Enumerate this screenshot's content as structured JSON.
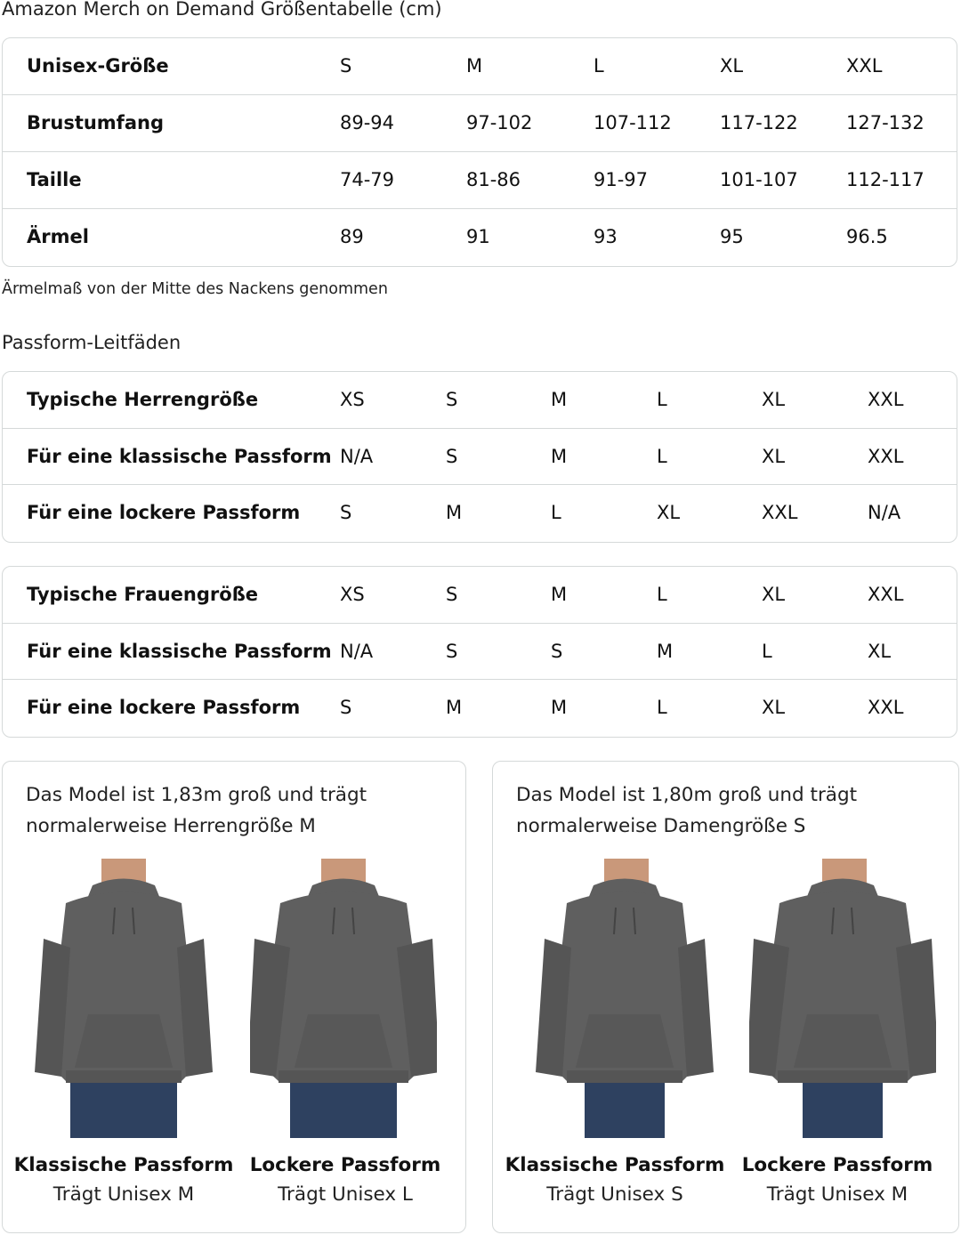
{
  "title": "Amazon Merch on Demand Größentabelle (cm)",
  "size_table": {
    "rows": [
      [
        "Unisex-Größe",
        "S",
        "M",
        "L",
        "XL",
        "XXL"
      ],
      [
        "Brustumfang",
        "89-94",
        "97-102",
        "107-112",
        "117-122",
        "127-132"
      ],
      [
        "Taille",
        "74-79",
        "81-86",
        "91-97",
        "101-107",
        "112-117"
      ],
      [
        "Ärmel",
        "89",
        "91",
        "93",
        "95",
        "96.5"
      ]
    ]
  },
  "note": "Ärmelmaß von der Mitte des Nackens genommen",
  "fit_heading": "Passform-Leitfäden",
  "men_table": {
    "rows": [
      [
        "Typische Herrengröße",
        "XS",
        "S",
        "M",
        "L",
        "XL",
        "XXL"
      ],
      [
        "Für eine klassische Passform",
        "N/A",
        "S",
        "M",
        "L",
        "XL",
        "XXL"
      ],
      [
        "Für eine lockere Passform",
        "S",
        "M",
        "L",
        "XL",
        "XXL",
        "N/A"
      ]
    ]
  },
  "women_table": {
    "rows": [
      [
        "Typische Frauengröße",
        "XS",
        "S",
        "M",
        "L",
        "XL",
        "XXL"
      ],
      [
        "Für eine klassische Passform",
        "N/A",
        "S",
        "S",
        "M",
        "L",
        "XL"
      ],
      [
        "Für eine lockere Passform",
        "S",
        "M",
        "M",
        "L",
        "XL",
        "XXL"
      ]
    ]
  },
  "cards": [
    {
      "text": [
        "Das Model ist 1,83m groß und trägt",
        "normalerweise Herrengröße M"
      ],
      "figures": [
        {
          "fit": "Klassische Passform",
          "wears": "Trägt Unisex M"
        },
        {
          "fit": "Lockere Passform",
          "wears": "Trägt Unisex L"
        }
      ]
    },
    {
      "text": [
        "Das Model ist 1,80m groß und trägt",
        "normalerweise Damengröße S"
      ],
      "figures": [
        {
          "fit": "Klassische Passform",
          "wears": "Trägt Unisex S"
        },
        {
          "fit": "Lockere Passform",
          "wears": "Trägt Unisex M"
        }
      ]
    }
  ],
  "colors": {
    "hoodie": "#5f5f5f",
    "jeans": "#2e4160",
    "skin": "#c9987a",
    "border": "#d5d9d9"
  }
}
